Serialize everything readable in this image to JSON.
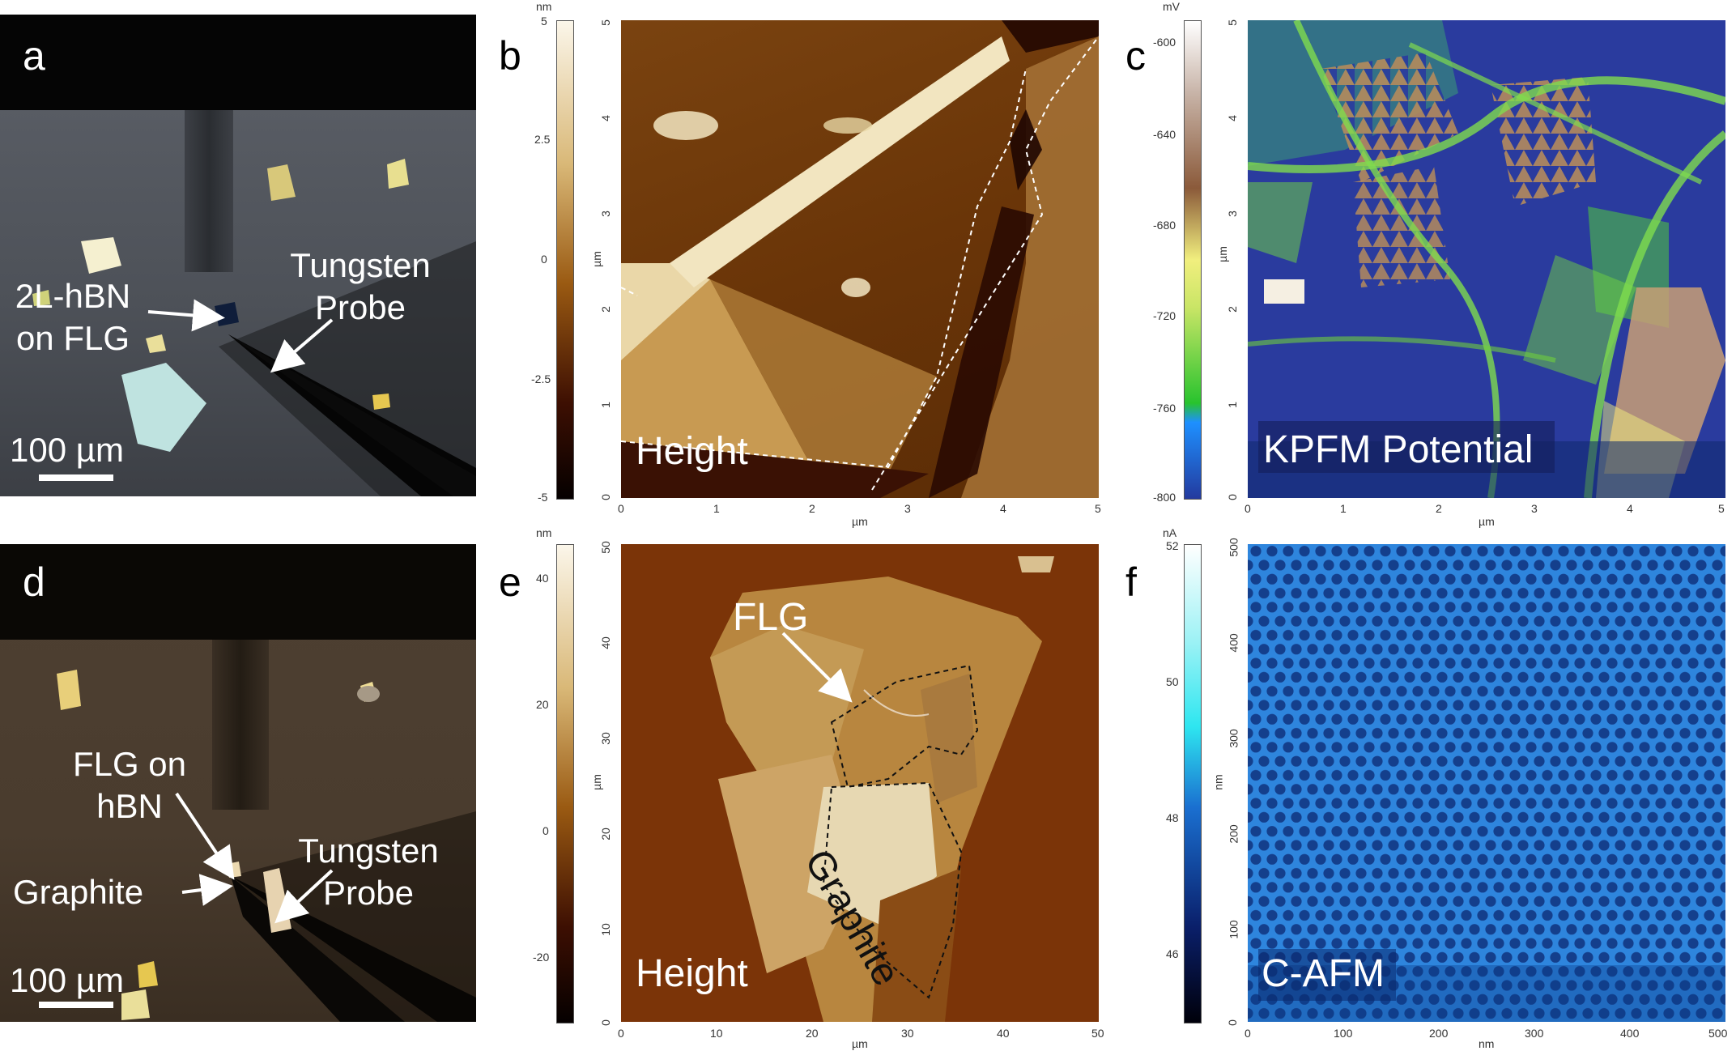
{
  "panels": {
    "a": {
      "letter": "a",
      "labels": {
        "sample": "2L-hBN\non FLG",
        "probe": "Tungsten\nProbe",
        "scalebar": "100 µm"
      }
    },
    "b": {
      "letter": "b",
      "map_label": "Height",
      "colorbar": {
        "unit": "nm",
        "ticks": [
          "5",
          "2.5",
          "0",
          "-2.5",
          "-5"
        ],
        "colors": [
          "#fbf6ea",
          "#d9b877",
          "#9a5a12",
          "#3d0f02",
          "#050000"
        ]
      },
      "axes": {
        "x_unit": "µm",
        "y_unit": "µm",
        "x_ticks": [
          "0",
          "1",
          "2",
          "3",
          "4",
          "5"
        ],
        "y_ticks": [
          "0",
          "1",
          "2",
          "3",
          "4",
          "5"
        ]
      }
    },
    "c": {
      "letter": "c",
      "map_label": "KPFM Potential",
      "colorbar": {
        "unit": "mV",
        "ticks": [
          "-600",
          "-640",
          "-680",
          "-720",
          "-760",
          "-800"
        ],
        "colors": [
          "#ffffff",
          "#8b5a3a",
          "#f1ef7e",
          "#28c32e",
          "#1e90ff",
          "#233a9e"
        ]
      },
      "axes": {
        "x_unit": "µm",
        "y_unit": "µm",
        "x_ticks": [
          "0",
          "1",
          "2",
          "3",
          "4",
          "5"
        ],
        "y_ticks": [
          "0",
          "1",
          "2",
          "3",
          "4",
          "5"
        ]
      }
    },
    "d": {
      "letter": "d",
      "labels": {
        "sample": "FLG on\nhBN",
        "graphite": "Graphite",
        "probe": "Tungsten\nProbe",
        "scalebar": "100 µm"
      }
    },
    "e": {
      "letter": "e",
      "map_label": "Height",
      "annotations": {
        "flg": "FLG",
        "graphite": "Graphite"
      },
      "colorbar": {
        "unit": "nm",
        "ticks": [
          "40",
          "20",
          "0",
          "-20"
        ],
        "colors": [
          "#fbf6ea",
          "#d9b877",
          "#9a5a12",
          "#3d0f02",
          "#050000"
        ]
      },
      "axes": {
        "x_unit": "µm",
        "y_unit": "µm",
        "x_ticks": [
          "0",
          "10",
          "20",
          "30",
          "40",
          "50"
        ],
        "y_ticks": [
          "0",
          "10",
          "20",
          "30",
          "40",
          "50"
        ]
      }
    },
    "f": {
      "letter": "f",
      "map_label": "C-AFM",
      "colorbar": {
        "unit": "nA",
        "ticks": [
          "52",
          "50",
          "48",
          "46"
        ],
        "colors": [
          "#ffffff",
          "#2ee6f0",
          "#1a6fd0",
          "#0a1f6a",
          "#00000a"
        ]
      },
      "axes": {
        "x_unit": "nm",
        "y_unit": "nm",
        "x_ticks": [
          "0",
          "100",
          "200",
          "300",
          "400",
          "500"
        ],
        "y_ticks": [
          "0",
          "100",
          "200",
          "300",
          "400",
          "500"
        ]
      }
    }
  }
}
